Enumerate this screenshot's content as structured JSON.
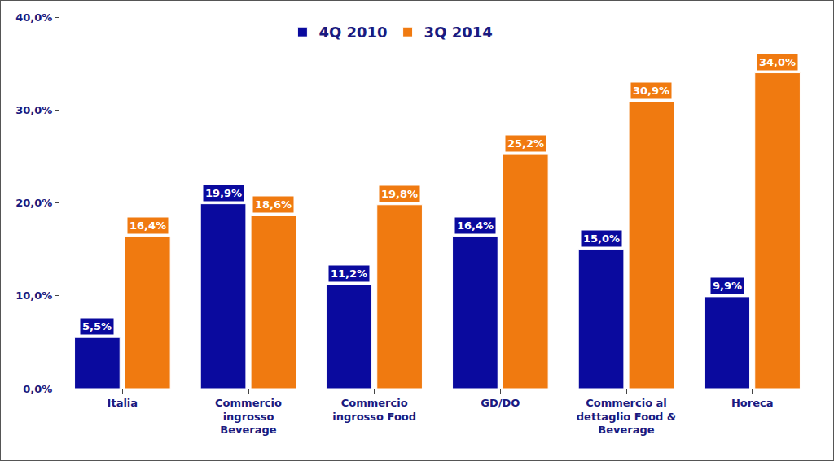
{
  "chart_data": {
    "type": "bar",
    "categories": [
      "Italia",
      "Commercio ingrosso Beverage",
      "Commercio ingrosso Food",
      "GD/DO",
      "Commercio al dettaglio Food & Beverage",
      "Horeca"
    ],
    "series": [
      {
        "name": "4Q 2010",
        "color": "#0a0a9e",
        "values": [
          5.5,
          19.9,
          11.2,
          16.4,
          15.0,
          9.9
        ],
        "value_labels": [
          "5,5%",
          "19,9%",
          "11,2%",
          "16,4%",
          "15,0%",
          "9,9%"
        ]
      },
      {
        "name": "3Q 2014",
        "color": "#f07a10",
        "values": [
          16.4,
          18.6,
          19.8,
          25.2,
          30.9,
          34.0
        ],
        "value_labels": [
          "16,4%",
          "18,6%",
          "19,8%",
          "25,2%",
          "30,9%",
          "34,0%"
        ]
      }
    ],
    "ylim": [
      0,
      40
    ],
    "yticks": [
      {
        "value": 0,
        "label": "0,0%"
      },
      {
        "value": 10,
        "label": "10,0%"
      },
      {
        "value": 20,
        "label": "20,0%"
      },
      {
        "value": 30,
        "label": "30,0%"
      },
      {
        "value": 40,
        "label": "40,0%"
      }
    ],
    "grid": false,
    "legend": "top",
    "data_labels": true
  }
}
